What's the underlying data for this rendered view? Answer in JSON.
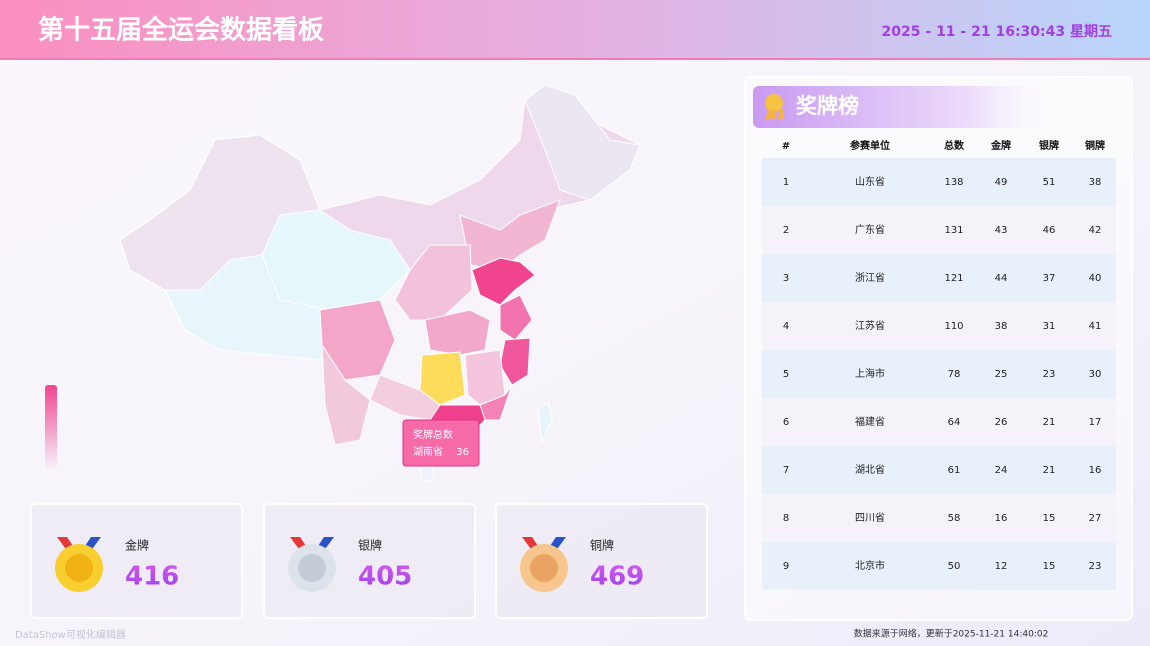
{
  "header": {
    "title": "第十五届全运会数据看板",
    "datetime": "2025 - 11 - 21 16:30:43 星期五"
  },
  "medal_cards": [
    {
      "label": "金牌",
      "value": "416"
    },
    {
      "label": "银牌",
      "value": "405"
    },
    {
      "label": "铜牌",
      "value": "469"
    }
  ],
  "map_tooltip": {
    "title": "奖牌总数",
    "region": "湖南省",
    "value": "36"
  },
  "ranking": {
    "title": "奖牌榜",
    "columns": [
      "#",
      "参赛单位",
      "总数",
      "金牌",
      "银牌",
      "铜牌"
    ],
    "rows": [
      [
        "1",
        "山东省",
        "138",
        "49",
        "51",
        "38"
      ],
      [
        "2",
        "广东省",
        "131",
        "43",
        "46",
        "42"
      ],
      [
        "3",
        "浙江省",
        "121",
        "44",
        "37",
        "40"
      ],
      [
        "4",
        "江苏省",
        "110",
        "38",
        "31",
        "41"
      ],
      [
        "5",
        "上海市",
        "78",
        "25",
        "23",
        "30"
      ],
      [
        "6",
        "福建省",
        "64",
        "26",
        "21",
        "17"
      ],
      [
        "7",
        "湖北省",
        "61",
        "24",
        "21",
        "16"
      ],
      [
        "8",
        "四川省",
        "58",
        "16",
        "15",
        "27"
      ],
      [
        "9",
        "北京市",
        "50",
        "12",
        "15",
        "23"
      ]
    ]
  },
  "footer": {
    "source": "数据来源于网络，更新于2025-11-21 14:40:02",
    "watermark": "DataShow可视化编辑器"
  }
}
